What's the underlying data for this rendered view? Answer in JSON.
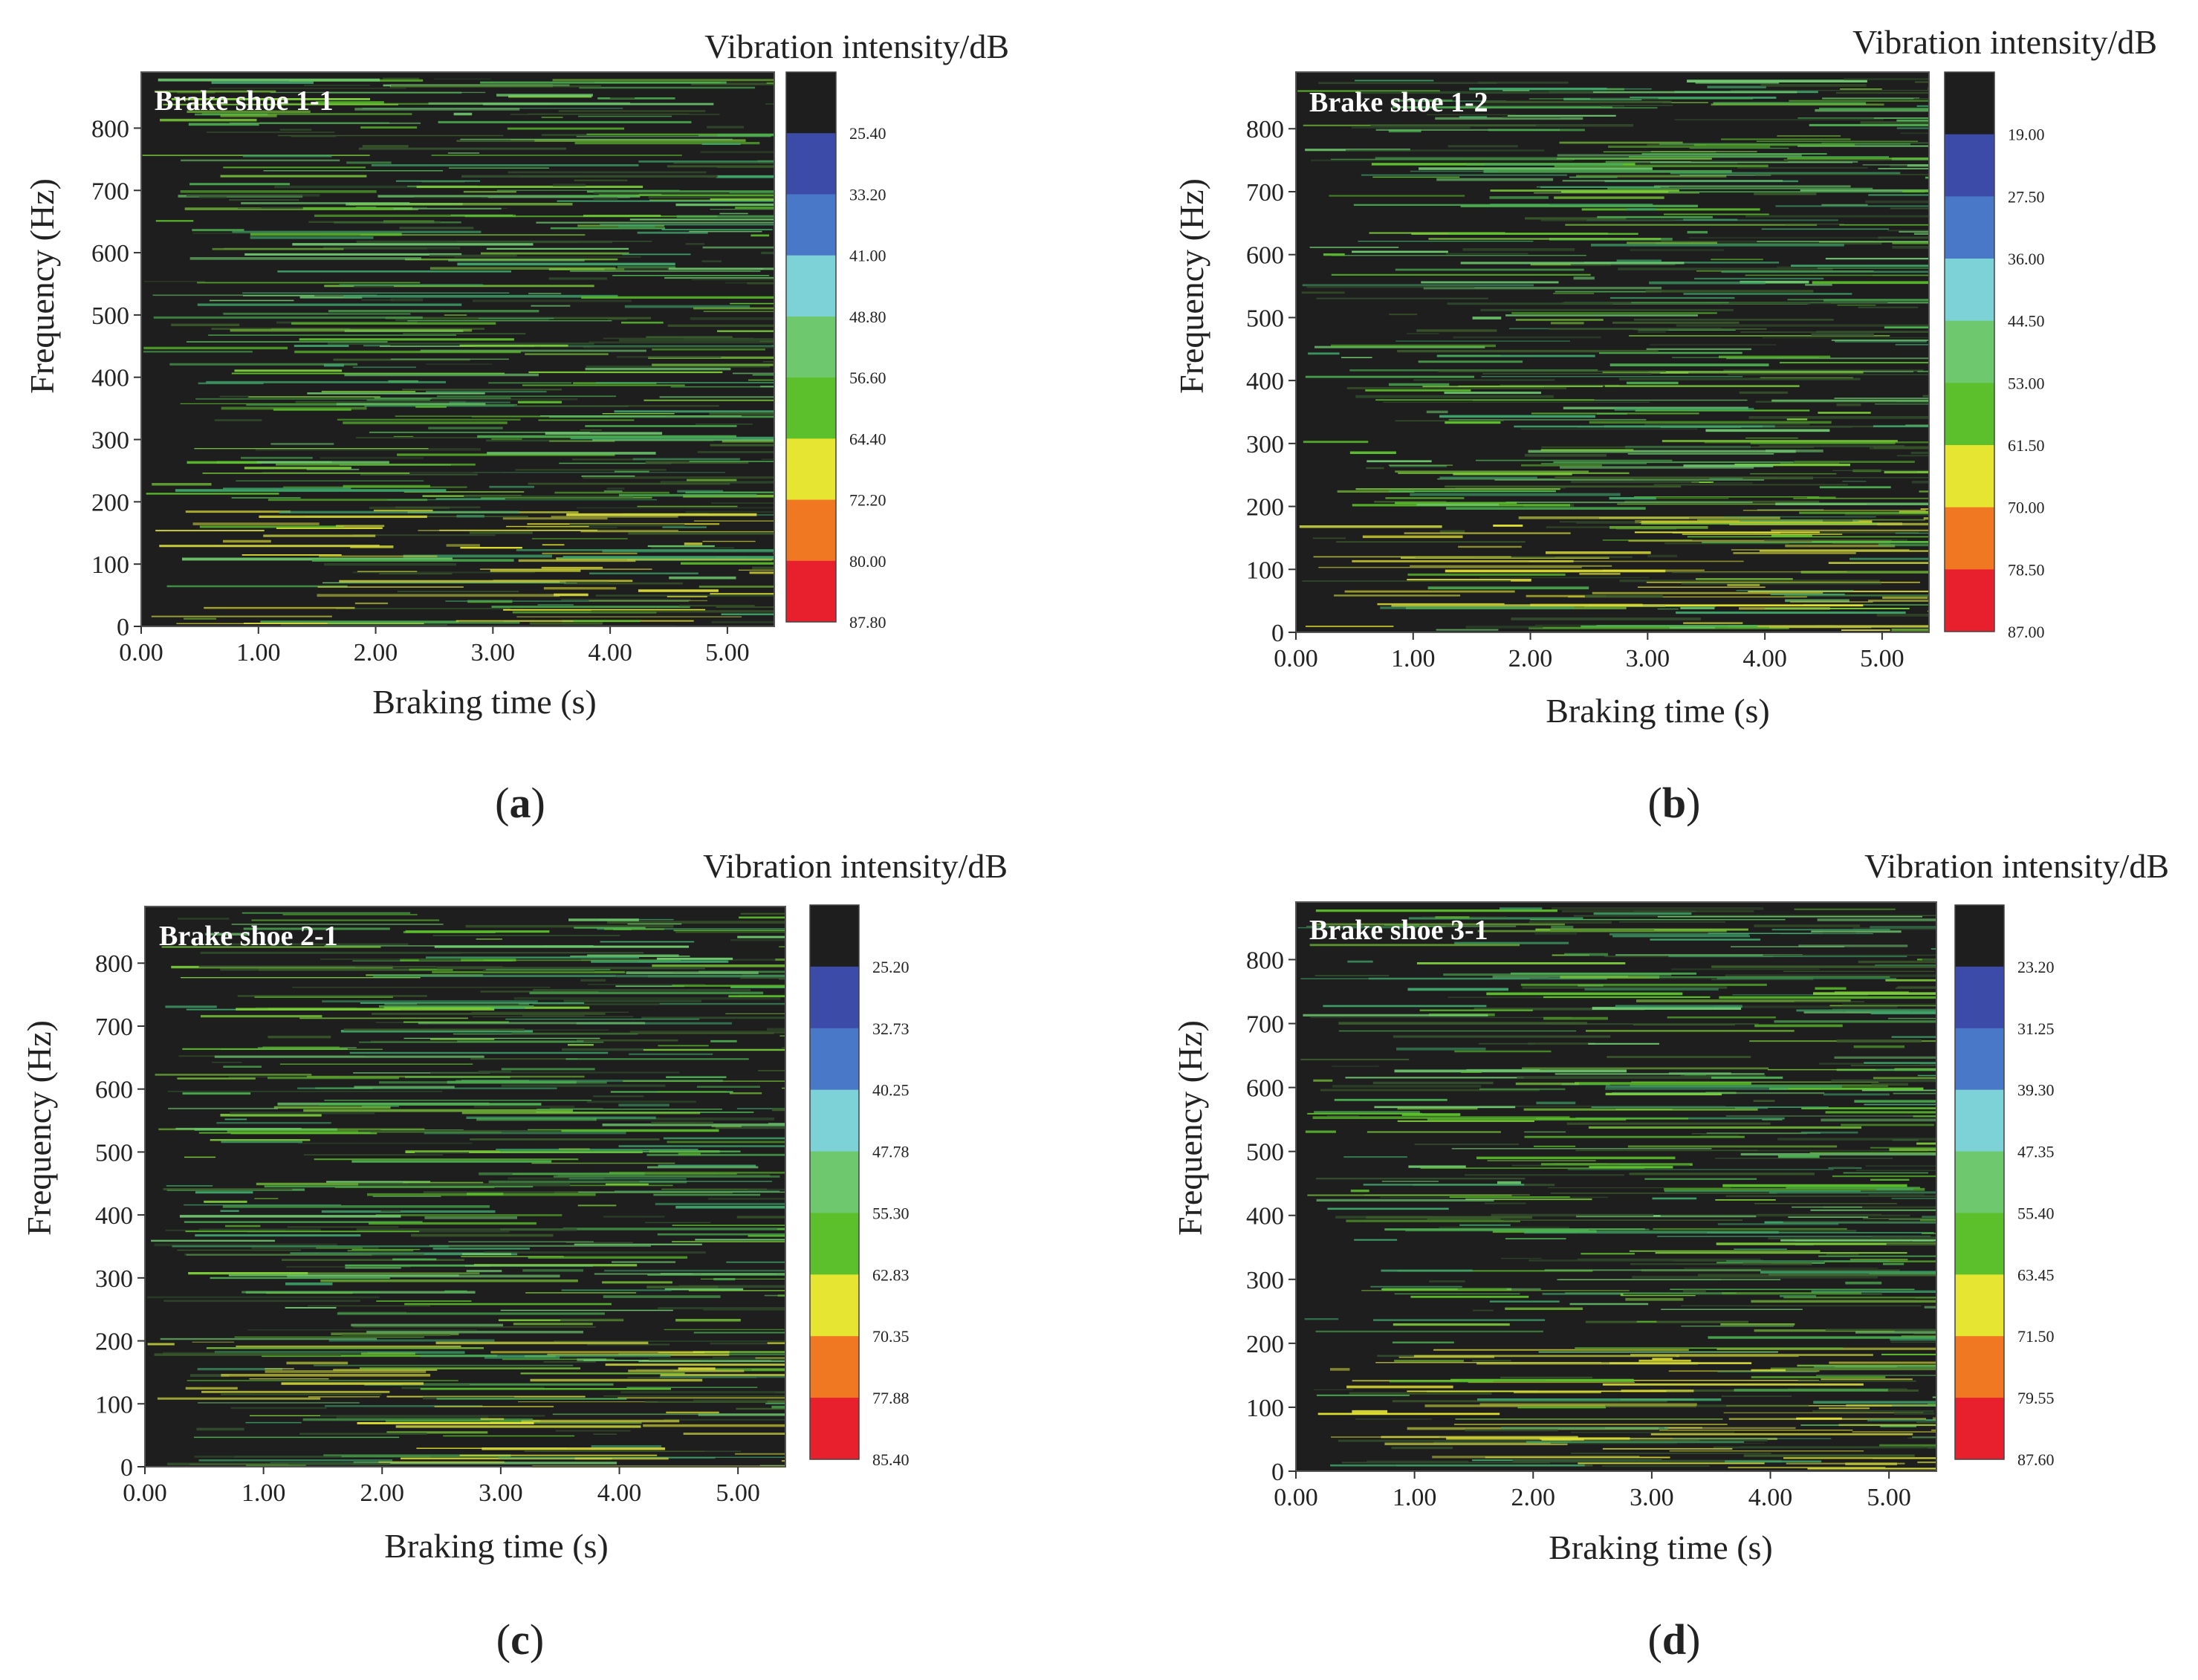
{
  "figure": {
    "shared": {
      "xlabel": "Braking time (s)",
      "ylabel": "Frequency (Hz)",
      "colorbar_title": "Vibration intensity/dB",
      "x_ticks": [
        "0.00",
        "1.00",
        "2.00",
        "3.00",
        "4.00",
        "5.00"
      ],
      "y_ticks": [
        "0",
        "100",
        "200",
        "300",
        "400",
        "500",
        "600",
        "700",
        "800"
      ],
      "colors": [
        "#1e1e1e",
        "#3c4aa8",
        "#4a78c8",
        "#7cd2d6",
        "#6ec86e",
        "#5cc02c",
        "#e6e632",
        "#f07822",
        "#e8202e"
      ]
    }
  },
  "chart_data": [
    {
      "type": "heatmap",
      "panel_label": "a",
      "title": "Brake shoe 1-1",
      "xlabel": "Braking time (s)",
      "ylabel": "Frequency (Hz)",
      "xlim": [
        0,
        5.4
      ],
      "ylim": [
        0,
        890
      ],
      "colorbar_title": "Vibration intensity/dB",
      "colorbar_levels": [
        "25.40",
        "33.20",
        "41.00",
        "48.80",
        "56.60",
        "64.40",
        "72.20",
        "80.00",
        "87.80"
      ]
    },
    {
      "type": "heatmap",
      "panel_label": "b",
      "title": "Brake shoe 1-2",
      "xlabel": "Braking time (s)",
      "ylabel": "Frequency (Hz)",
      "xlim": [
        0,
        5.4
      ],
      "ylim": [
        0,
        890
      ],
      "colorbar_title": "Vibration intensity/dB",
      "colorbar_levels": [
        "19.00",
        "27.50",
        "36.00",
        "44.50",
        "53.00",
        "61.50",
        "70.00",
        "78.50",
        "87.00"
      ]
    },
    {
      "type": "heatmap",
      "panel_label": "c",
      "title": "Brake shoe 2-1",
      "xlabel": "Braking time (s)",
      "ylabel": "Frequency (Hz)",
      "xlim": [
        0,
        5.4
      ],
      "ylim": [
        0,
        890
      ],
      "colorbar_title": "Vibration intensity/dB",
      "colorbar_levels": [
        "25.20",
        "32.73",
        "40.25",
        "47.78",
        "55.30",
        "62.83",
        "70.35",
        "77.88",
        "85.40"
      ]
    },
    {
      "type": "heatmap",
      "panel_label": "d",
      "title": "Brake shoe 3-1",
      "xlabel": "Braking time (s)",
      "ylabel": "Frequency (Hz)",
      "xlim": [
        0,
        5.4
      ],
      "ylim": [
        0,
        890
      ],
      "colorbar_title": "Vibration intensity/dB",
      "colorbar_levels": [
        "23.20",
        "31.25",
        "39.30",
        "47.35",
        "55.40",
        "63.45",
        "71.50",
        "79.55",
        "87.60"
      ]
    }
  ]
}
